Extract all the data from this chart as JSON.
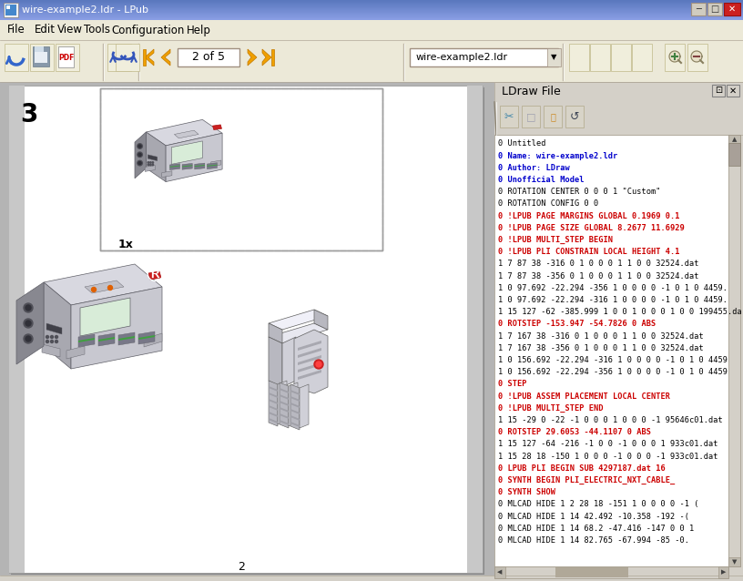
{
  "title": "wire-example2.ldr - LPub",
  "bg_color": "#d4d0c8",
  "titlebar_colors": [
    "#7aabe8",
    "#5588cc",
    "#4470bb"
  ],
  "menu_items": [
    "File",
    "Edit",
    "View",
    "Tools",
    "Configuration",
    "Help"
  ],
  "menu_bg": "#ece9d8",
  "toolbar_bg": "#ece9d8",
  "page_text": "2 of 5",
  "dropdown_text": "wire-example2.ldr",
  "canvas_bg": "#b0b0b0",
  "page_bg": "#ffffff",
  "page_margin_bg": "#b8b8b8",
  "step_number": "3",
  "part_count": "1x",
  "page_number": "2",
  "side_panel_header_bg": "#d4d0c8",
  "side_panel_toolbar_bg": "#d4d0c8",
  "side_panel_text_bg": "#ffffff",
  "side_panel_title": "LDraw File",
  "text_lines": [
    {
      "text": "0 Untitled",
      "color": "#000000"
    },
    {
      "text": "0 Name: wire-example2.ldr",
      "color": "#0000cc"
    },
    {
      "text": "0 Author: LDraw",
      "color": "#0000cc"
    },
    {
      "text": "0 Unofficial Model",
      "color": "#0000cc"
    },
    {
      "text": "0 ROTATION CENTER 0 0 0 1 \"Custom\"",
      "color": "#000000"
    },
    {
      "text": "0 ROTATION CONFIG 0 0",
      "color": "#000000"
    },
    {
      "text": "0 !LPUB PAGE MARGINS GLOBAL 0.1969 0.1",
      "color": "#cc0000"
    },
    {
      "text": "0 !LPUB PAGE SIZE GLOBAL 8.2677 11.6929",
      "color": "#cc0000"
    },
    {
      "text": "0 !LPUB MULTI_STEP BEGIN",
      "color": "#cc0000"
    },
    {
      "text": "0 !LPUB PLI CONSTRAIN LOCAL HEIGHT 4.1",
      "color": "#cc0000"
    },
    {
      "text": "1 7 87 38 -316 0 1 0 0 0 1 1 0 0 32524.dat",
      "color": "#000000"
    },
    {
      "text": "1 7 87 38 -356 0 1 0 0 0 1 1 0 0 32524.dat",
      "color": "#000000"
    },
    {
      "text": "1 0 97.692 -22.294 -356 1 0 0 0 0 -1 0 1 0 4459.",
      "color": "#000000"
    },
    {
      "text": "1 0 97.692 -22.294 -316 1 0 0 0 0 -1 0 1 0 4459.",
      "color": "#000000"
    },
    {
      "text": "1 15 127 -62 -385.999 1 0 0 1 0 0 0 1 0 0 199455.da",
      "color": "#000000"
    },
    {
      "text": "0 ROTSTEP -153.947 -54.7826 0 ABS",
      "color": "#cc0000"
    },
    {
      "text": "1 7 167 38 -316 0 1 0 0 0 1 1 0 0 32524.dat",
      "color": "#000000"
    },
    {
      "text": "1 7 167 38 -356 0 1 0 0 0 1 1 0 0 32524.dat",
      "color": "#000000"
    },
    {
      "text": "1 0 156.692 -22.294 -316 1 0 0 0 0 -1 0 1 0 4459",
      "color": "#000000"
    },
    {
      "text": "1 0 156.692 -22.294 -356 1 0 0 0 0 -1 0 1 0 4459",
      "color": "#000000"
    },
    {
      "text": "0 STEP",
      "color": "#cc0000"
    },
    {
      "text": "0 !LPUB ASSEM PLACEMENT LOCAL CENTER",
      "color": "#cc0000"
    },
    {
      "text": "0 !LPUB MULTI_STEP END",
      "color": "#cc0000"
    },
    {
      "text": "1 15 -29 0 -22 -1 0 0 0 1 0 0 0 -1 95646c01.dat",
      "color": "#000000"
    },
    {
      "text": "0 ROTSTEP 29.6053 -44.1107 0 ABS",
      "color": "#cc0000"
    },
    {
      "text": "1 15 127 -64 -216 -1 0 0 -1 0 0 0 1 933c01.dat",
      "color": "#000000"
    },
    {
      "text": "1 15 28 18 -150 1 0 0 0 -1 0 0 0 -1 933c01.dat",
      "color": "#000000"
    },
    {
      "text": "0 LPUB PLI BEGIN SUB 4297187.dat 16",
      "color": "#cc0000"
    },
    {
      "text": "0 SYNTH BEGIN PLI_ELECTRIC_NXT_CABLE_",
      "color": "#cc0000"
    },
    {
      "text": "0 SYNTH SHOW",
      "color": "#cc0000"
    },
    {
      "text": "0 MLCAD HIDE 1 2 28 18 -151 1 0 0 0 0 -1 (",
      "color": "#000000"
    },
    {
      "text": "0 MLCAD HIDE 1 14 42.492 -10.358 -192 -(",
      "color": "#000000"
    },
    {
      "text": "0 MLCAD HIDE 1 14 68.2 -47.416 -147 0 0 1",
      "color": "#000000"
    },
    {
      "text": "0 MLCAD HIDE 1 14 82.765 -67.994 -85 -0.",
      "color": "#000000"
    }
  ]
}
